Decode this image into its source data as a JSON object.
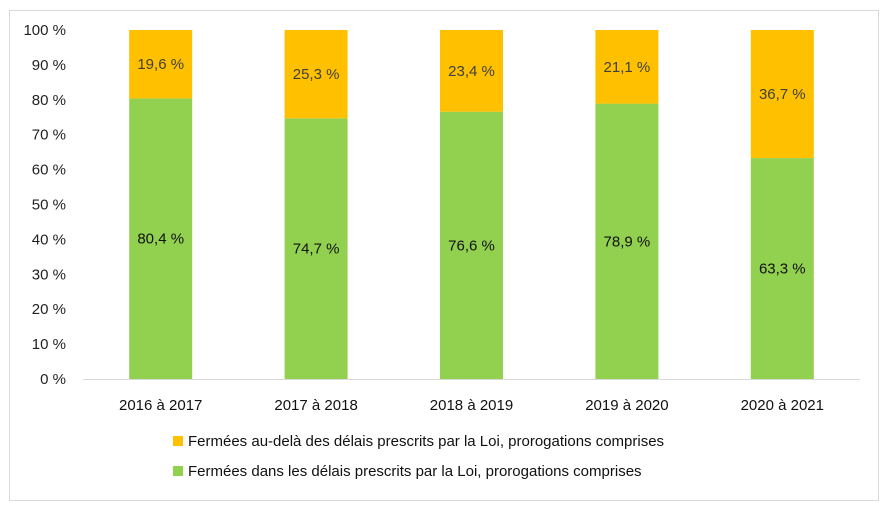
{
  "chart_data": {
    "type": "bar",
    "stacked": true,
    "normalized": true,
    "title": "",
    "xlabel": "",
    "ylabel": "",
    "ylim": [
      0,
      100
    ],
    "yticks": [
      "0 %",
      "10 %",
      "20 %",
      "30 %",
      "40 %",
      "50 %",
      "60 %",
      "70 %",
      "80 %",
      "90 %",
      "100 %"
    ],
    "grid": false,
    "legend_position": "bottom",
    "categories": [
      "2016 à 2017",
      "2017 à 2018",
      "2018 à 2019",
      "2019 à 2020",
      "2020 à 2021"
    ],
    "series": [
      {
        "name": "Fermées dans les délais prescrits par la Loi, prorogations comprises",
        "color": "#92d050",
        "values": [
          80.4,
          74.7,
          76.6,
          78.9,
          63.3
        ],
        "labels": [
          "80,4 %",
          "74,7 %",
          "76,6 %",
          "78,9 %",
          "63,3 %"
        ]
      },
      {
        "name": "Fermées au-delà des délais prescrits par la Loi, prorogations comprises",
        "color": "#ffc000",
        "values": [
          19.6,
          25.3,
          23.4,
          21.1,
          36.7
        ],
        "labels": [
          "19,6 %",
          "25,3 %",
          "23,4 %",
          "21,1 %",
          "36,7 %"
        ]
      }
    ],
    "legend": [
      {
        "label": "Fermées au-delà des délais prescrits par la Loi, prorogations comprises",
        "color": "#ffc000"
      },
      {
        "label": "Fermées dans les délais prescrits par la Loi, prorogations comprises",
        "color": "#92d050"
      }
    ]
  },
  "colors": {
    "axis": "#d9d9d9",
    "frame": "#d9d9d9"
  }
}
